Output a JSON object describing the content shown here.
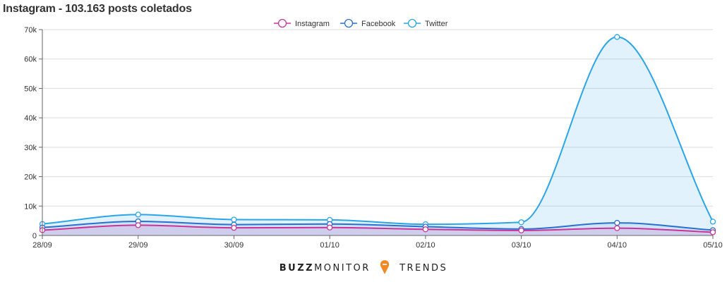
{
  "chart_data": {
    "type": "area",
    "title": "Instagram - 103.163 posts coletados",
    "categories": [
      "28/09",
      "29/09",
      "30/09",
      "01/10",
      "02/10",
      "03/10",
      "04/10",
      "05/10"
    ],
    "series": [
      {
        "name": "Instagram",
        "color": "#cc3399",
        "values": [
          1800,
          3500,
          2600,
          2700,
          2100,
          1700,
          2500,
          1100
        ]
      },
      {
        "name": "Facebook",
        "color": "#2b6fd1",
        "values": [
          2700,
          4800,
          3700,
          3900,
          3000,
          2200,
          4300,
          1800
        ]
      },
      {
        "name": "Twitter",
        "color": "#2aa5e8",
        "values": [
          3900,
          7100,
          5400,
          5300,
          3800,
          4500,
          67500,
          4700
        ]
      }
    ],
    "ylim": [
      0,
      70000
    ],
    "yticks": [
      0,
      10000,
      20000,
      30000,
      40000,
      50000,
      60000,
      70000
    ],
    "ytick_labels": [
      "0",
      "10k",
      "20k",
      "30k",
      "40k",
      "50k",
      "60k",
      "70k"
    ],
    "grid": true,
    "legend_position": "top-center"
  },
  "brand": {
    "part1": "BUZZ",
    "part2": "MONITOR",
    "part3": "TRENDS",
    "pin_color": "#f08a24"
  }
}
